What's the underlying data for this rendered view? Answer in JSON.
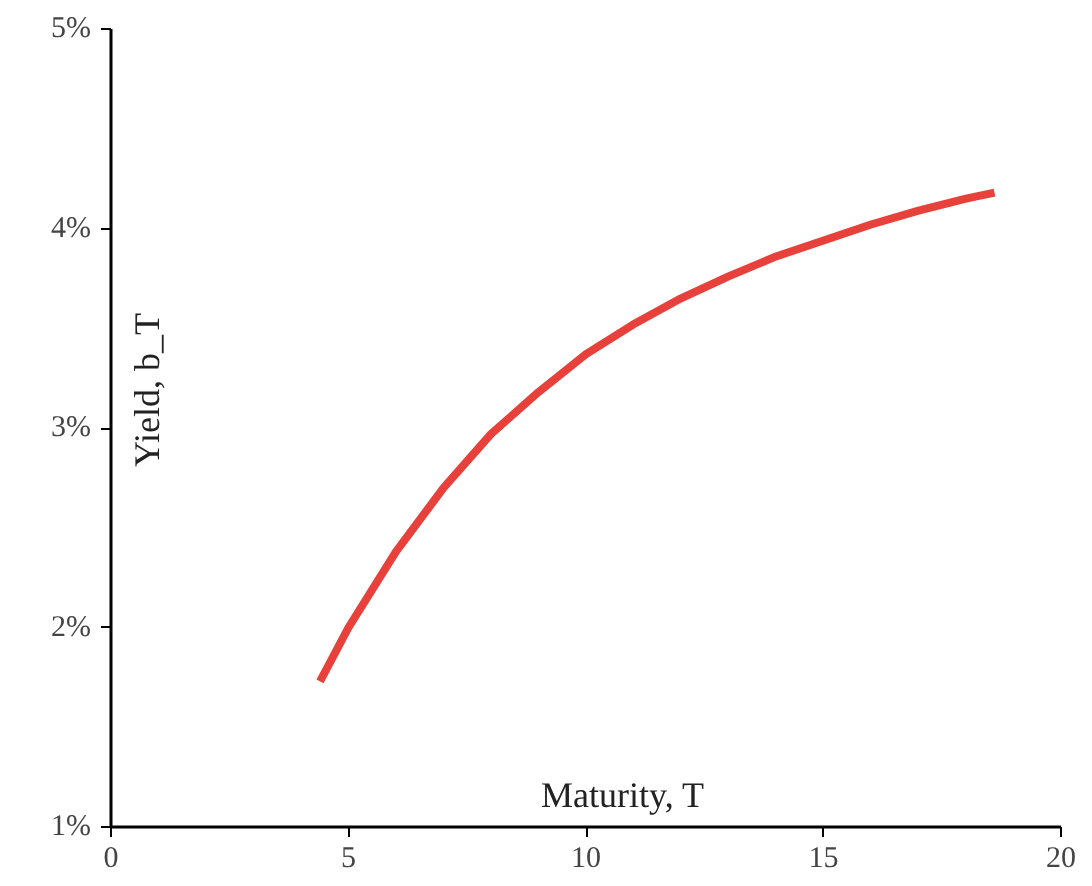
{
  "chart_data": {
    "type": "line",
    "xlabel": "Maturity, T",
    "ylabel": "Yield, b_T",
    "x": [
      4.4,
      5,
      6,
      7,
      8,
      9,
      10,
      11,
      12,
      13,
      14,
      15,
      16,
      17,
      18,
      18.6
    ],
    "series": [
      {
        "color": "#e8403a",
        "values": [
          1.73,
          2.0,
          2.38,
          2.7,
          2.97,
          3.18,
          3.37,
          3.52,
          3.65,
          3.76,
          3.86,
          3.94,
          4.02,
          4.09,
          4.15,
          4.18
        ]
      }
    ],
    "xlim": [
      0,
      20
    ],
    "xticks": [
      0,
      5,
      10,
      15,
      20
    ],
    "ylim": [
      1,
      5
    ],
    "yticks": [
      {
        "value": 1,
        "label": "1%"
      },
      {
        "value": 2,
        "label": "2%"
      },
      {
        "value": 3,
        "label": "3%"
      },
      {
        "value": 4,
        "label": "4%"
      },
      {
        "value": 5,
        "label": "5%"
      }
    ],
    "grid": false,
    "marker": "none",
    "line_style": "solid"
  }
}
